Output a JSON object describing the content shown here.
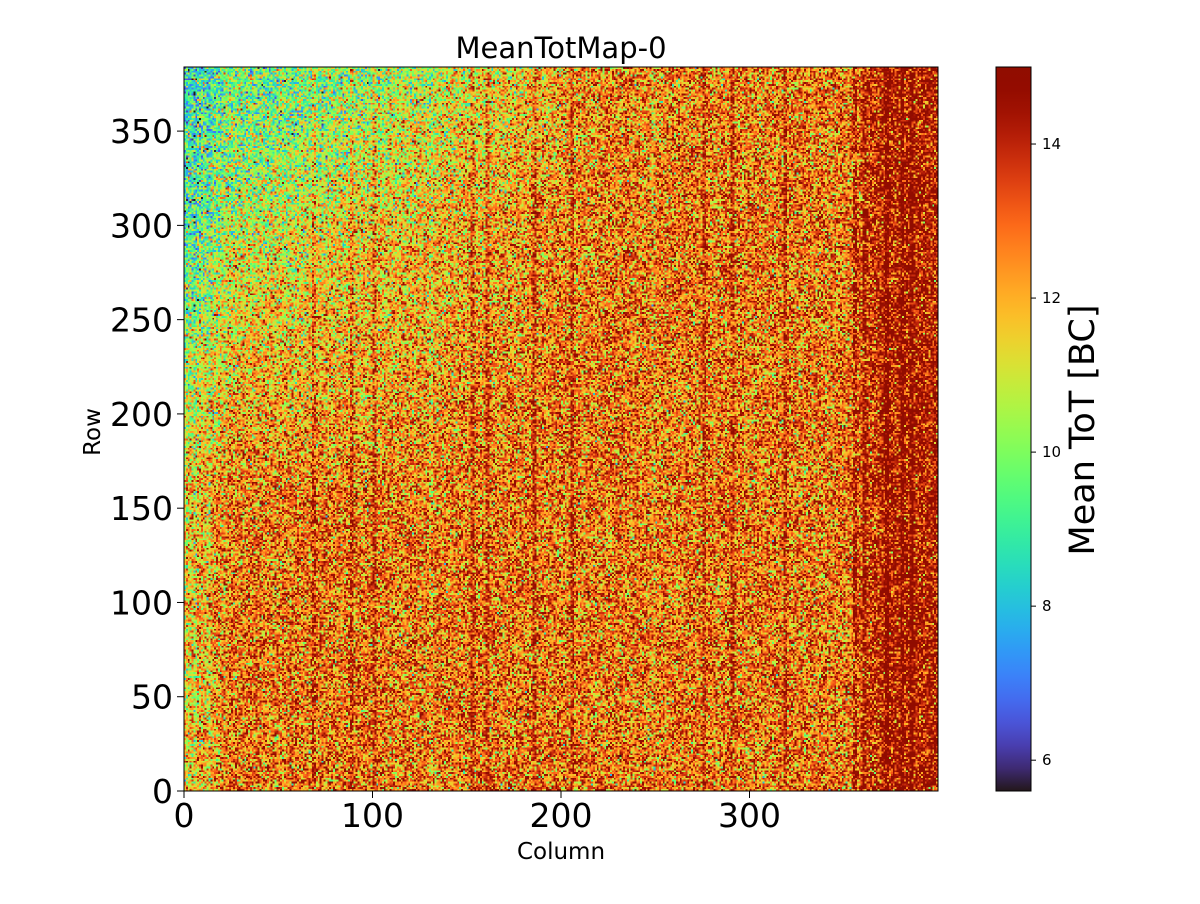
{
  "chart_data": {
    "type": "heatmap",
    "title": "MeanTotMap-0",
    "xlabel": "Column",
    "ylabel": "Row",
    "xlim": [
      0,
      400
    ],
    "ylim": [
      0,
      384
    ],
    "x_ticks": [
      0,
      100,
      200,
      300
    ],
    "y_ticks": [
      0,
      50,
      100,
      150,
      200,
      250,
      300,
      350
    ],
    "colorbar": {
      "label": "Mean ToT [BC]",
      "range": [
        5.6,
        15.0
      ],
      "ticks": [
        6,
        8,
        10,
        12,
        14
      ],
      "colormap": "turbo"
    },
    "grid_size": {
      "columns": 400,
      "rows": 384
    },
    "value_model": {
      "typical_value": 12.8,
      "spread": 1.5,
      "top_left_region_value": 10.5,
      "right_edge_region_value": 14.3,
      "high_columns": [
        68,
        88,
        100,
        152,
        160,
        185,
        205,
        275,
        290,
        318,
        355,
        360,
        372,
        380,
        385
      ],
      "low_columns": [
        5,
        12,
        130,
        248
      ]
    }
  }
}
